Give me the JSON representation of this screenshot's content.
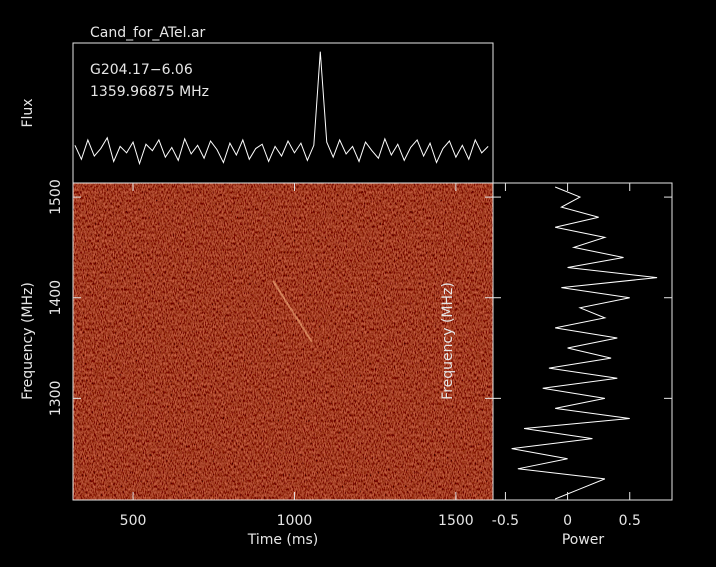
{
  "chart_data": [
    {
      "type": "line",
      "title": "Cand_for_ATel.ar",
      "annotations": [
        "G204.17−6.06",
        "1359.96875 MHz"
      ],
      "ylabel": "Flux",
      "color": "#ffffff",
      "xlim": [
        314,
        1615
      ],
      "ylim": [
        -0.3,
        1.0
      ],
      "x": [
        320,
        340,
        360,
        380,
        400,
        420,
        440,
        460,
        480,
        500,
        520,
        540,
        560,
        580,
        600,
        620,
        640,
        660,
        680,
        700,
        720,
        740,
        760,
        780,
        800,
        820,
        840,
        860,
        880,
        900,
        920,
        940,
        960,
        980,
        1000,
        1020,
        1040,
        1060,
        1080,
        1100,
        1120,
        1140,
        1160,
        1180,
        1200,
        1220,
        1240,
        1260,
        1280,
        1300,
        1320,
        1340,
        1360,
        1380,
        1400,
        1420,
        1440,
        1460,
        1480,
        1500,
        1520,
        1540,
        1560,
        1580,
        1600
      ],
      "values": [
        0.05,
        -0.08,
        0.1,
        -0.05,
        0.02,
        0.12,
        -0.1,
        0.04,
        -0.02,
        0.08,
        -0.12,
        0.06,
        0.0,
        0.1,
        -0.06,
        0.03,
        -0.09,
        0.11,
        -0.03,
        0.05,
        -0.07,
        0.09,
        0.01,
        -0.11,
        0.07,
        -0.04,
        0.1,
        -0.08,
        0.02,
        0.06,
        -0.1,
        0.04,
        -0.05,
        0.09,
        -0.02,
        0.07,
        -0.09,
        0.05,
        0.92,
        0.08,
        -0.06,
        0.1,
        -0.03,
        0.04,
        -0.1,
        0.08,
        0.0,
        -0.07,
        0.11,
        -0.04,
        0.06,
        -0.09,
        0.03,
        0.1,
        -0.05,
        0.07,
        -0.11,
        0.02,
        0.09,
        -0.06,
        0.05,
        -0.08,
        0.1,
        -0.02,
        0.04
      ]
    },
    {
      "type": "heatmap",
      "xlabel": "Time (ms)",
      "ylabel": "Frequency (MHz)",
      "xlim": [
        314,
        1615
      ],
      "ylim": [
        1199,
        1514
      ],
      "xticks": [
        500,
        1000,
        1500
      ],
      "yticks": [
        1300,
        1400,
        1500
      ]
    },
    {
      "type": "hline",
      "xlabel": "Power",
      "ylabel": "Frequency (MHz)",
      "color": "#ffffff",
      "xlim": [
        -0.6,
        0.84
      ],
      "ylim": [
        1199,
        1514
      ],
      "xticks": [
        -0.5,
        0,
        0.5
      ],
      "yticks": [
        1300,
        1400,
        1500
      ],
      "y": [
        1200,
        1210,
        1220,
        1230,
        1240,
        1250,
        1260,
        1270,
        1280,
        1290,
        1300,
        1310,
        1320,
        1330,
        1340,
        1350,
        1360,
        1370,
        1380,
        1390,
        1400,
        1410,
        1420,
        1430,
        1440,
        1450,
        1460,
        1470,
        1480,
        1490,
        1500,
        1510
      ],
      "values": [
        -0.1,
        0.1,
        0.3,
        -0.4,
        0.0,
        -0.45,
        0.2,
        -0.35,
        0.5,
        -0.1,
        0.3,
        -0.2,
        0.4,
        -0.15,
        0.35,
        0.0,
        0.4,
        -0.1,
        0.3,
        0.1,
        0.5,
        -0.05,
        0.72,
        0.0,
        0.45,
        0.05,
        0.3,
        -0.1,
        0.25,
        -0.05,
        0.1,
        -0.1
      ]
    }
  ]
}
